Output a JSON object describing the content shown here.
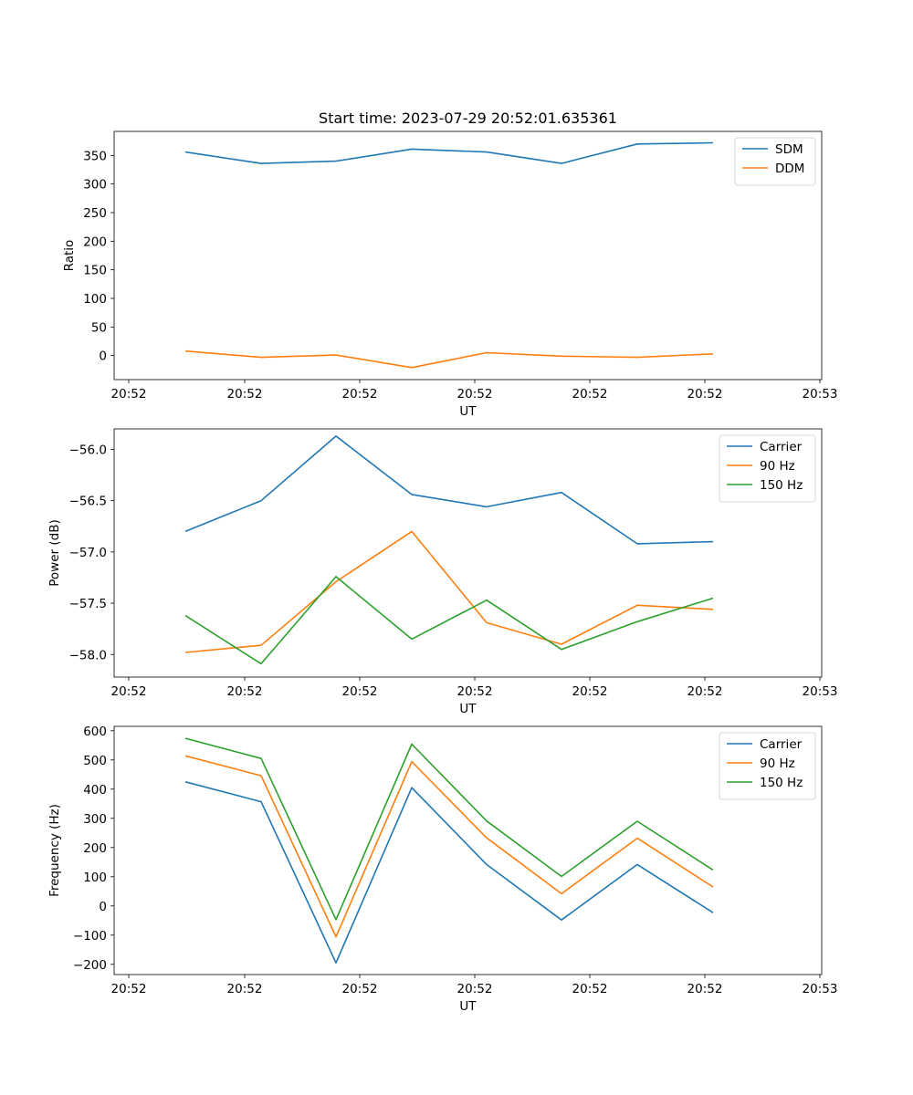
{
  "chart_data": [
    {
      "type": "line",
      "title": "Start time: 2023-07-29 20:52:01.635361",
      "xlabel": "UT",
      "ylabel": "Ratio",
      "legend": "top-right",
      "x_ticks": [
        "20:52",
        "20:52",
        "20:52",
        "20:52",
        "20:52",
        "20:52",
        "20:53"
      ],
      "ylim": [
        -42,
        392
      ],
      "y_ticks": [
        0,
        50,
        100,
        150,
        200,
        250,
        300,
        350
      ],
      "series": [
        {
          "name": "SDM",
          "color": "#1f77b4",
          "values": [
            356,
            336,
            340,
            361,
            356,
            336,
            370,
            372
          ]
        },
        {
          "name": "DDM",
          "color": "#ff7f0e",
          "values": [
            8,
            -3,
            1,
            -21,
            5,
            -1,
            -3,
            3
          ]
        }
      ]
    },
    {
      "type": "line",
      "title": "",
      "xlabel": "UT",
      "ylabel": "Power (dB)",
      "legend": "top-right",
      "x_ticks": [
        "20:52",
        "20:52",
        "20:52",
        "20:52",
        "20:52",
        "20:52",
        "20:53"
      ],
      "ylim": [
        -58.22,
        -55.8
      ],
      "y_ticks": [
        -58.0,
        -57.5,
        -57.0,
        -56.5,
        -56.0
      ],
      "y_tick_labels": [
        "−58.0",
        "−57.5",
        "−57.0",
        "−56.5",
        "−56.0"
      ],
      "series": [
        {
          "name": "Carrier",
          "color": "#1f77b4",
          "values": [
            -56.8,
            -56.5,
            -55.87,
            -56.44,
            -56.56,
            -56.42,
            -56.92,
            -56.9
          ]
        },
        {
          "name": "90 Hz",
          "color": "#ff7f0e",
          "values": [
            -57.98,
            -57.91,
            -57.29,
            -56.8,
            -57.69,
            -57.9,
            -57.52,
            -57.56
          ]
        },
        {
          "name": "150 Hz",
          "color": "#2ca02c",
          "values": [
            -57.62,
            -58.09,
            -57.24,
            -57.85,
            -57.47,
            -57.95,
            -57.68,
            -57.45
          ]
        }
      ]
    },
    {
      "type": "line",
      "title": "",
      "xlabel": "UT",
      "ylabel": "Frequency (Hz)",
      "legend": "top-right",
      "x_ticks": [
        "20:52",
        "20:52",
        "20:52",
        "20:52",
        "20:52",
        "20:52",
        "20:53"
      ],
      "ylim": [
        -235,
        615
      ],
      "y_ticks": [
        -200,
        -100,
        0,
        100,
        200,
        300,
        400,
        500,
        600
      ],
      "y_tick_labels": [
        "−200",
        "−100",
        "0",
        "100",
        "200",
        "300",
        "400",
        "500",
        "600"
      ],
      "series": [
        {
          "name": "Carrier",
          "color": "#1f77b4",
          "values": [
            425,
            357,
            -195,
            405,
            142,
            -48,
            142,
            -23
          ]
        },
        {
          "name": "90 Hz",
          "color": "#ff7f0e",
          "values": [
            514,
            446,
            -106,
            494,
            233,
            42,
            232,
            65
          ]
        },
        {
          "name": "150 Hz",
          "color": "#2ca02c",
          "values": [
            574,
            505,
            -47,
            554,
            291,
            101,
            290,
            123
          ]
        }
      ]
    }
  ]
}
